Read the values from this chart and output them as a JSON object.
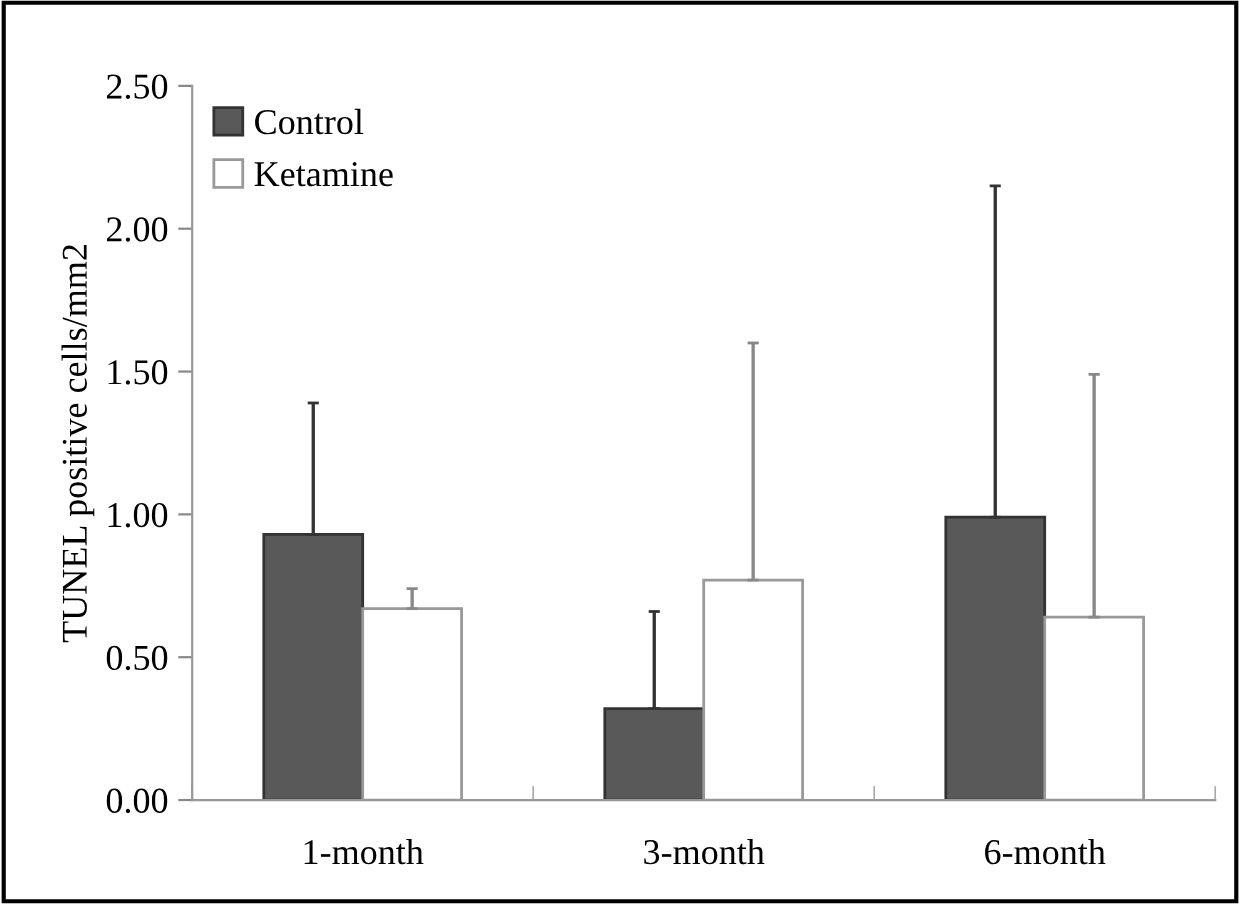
{
  "chart_data": {
    "type": "bar",
    "ylabel": "TUNEL positive cells/mm2",
    "categories": [
      "1-month",
      "3-month",
      "6-month"
    ],
    "series": [
      {
        "name": "Control",
        "color": "#595959",
        "values": [
          0.93,
          0.32,
          0.99
        ],
        "errors": [
          [
            0.93,
            1.39
          ],
          [
            0.32,
            0.66
          ],
          [
            0.99,
            2.15
          ]
        ]
      },
      {
        "name": "Ketamine",
        "color": "#ffffff",
        "values": [
          0.67,
          0.77,
          0.64
        ],
        "errors": [
          [
            0.67,
            0.74
          ],
          [
            0.77,
            1.6
          ],
          [
            0.64,
            1.49
          ]
        ]
      }
    ],
    "ylim": [
      0,
      2.5
    ],
    "yticks": [
      {
        "value": 0,
        "label": "0.00"
      },
      {
        "value": 0.5,
        "label": "0.50"
      },
      {
        "value": 1,
        "label": "1.00"
      },
      {
        "value": 1.5,
        "label": "1.50"
      },
      {
        "value": 2,
        "label": "2.00"
      },
      {
        "value": 2.5,
        "label": "2.50"
      }
    ],
    "grid": false,
    "legend": "top left"
  }
}
